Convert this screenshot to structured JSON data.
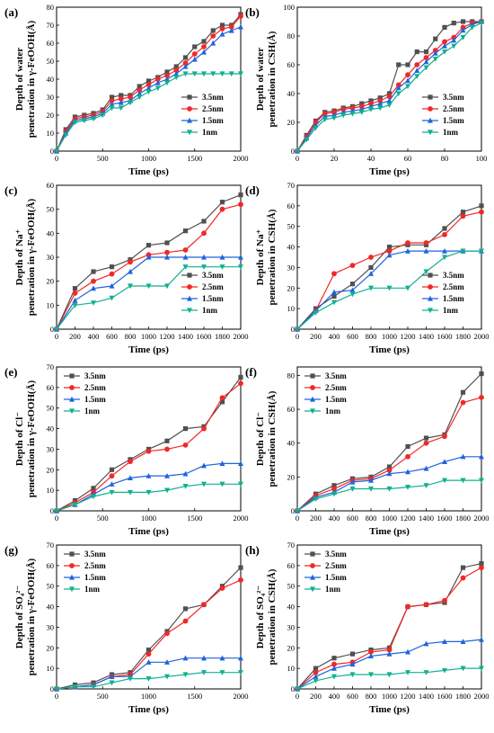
{
  "figure": {
    "x_title": "Time (ps)",
    "legend_names": [
      "3.5nm",
      "2.5nm",
      "1.5nm",
      "1nm"
    ],
    "series_colors": [
      "#505050",
      "#f02828",
      "#1e64dc",
      "#10b090"
    ],
    "marker_shapes": [
      "square",
      "circle",
      "triangle-up",
      "triangle-down"
    ]
  },
  "chart_data": [
    {
      "type": "line",
      "panel_label": "(a)",
      "ylabel_line1": "Depth of water",
      "ylabel_line2": "penetration in γ-FeOOH(Å)",
      "xlabel": "Time (ps)",
      "xlim": [
        0,
        2000
      ],
      "ylim": [
        0,
        80
      ],
      "xticks": [
        "0",
        "500",
        "1000",
        "1500",
        "2000"
      ],
      "yticks": [
        "0",
        "10",
        "20",
        "30",
        "40",
        "50",
        "60",
        "70",
        "80"
      ],
      "legend_position": "lower-right",
      "x": [
        0,
        100,
        200,
        300,
        400,
        500,
        600,
        700,
        800,
        900,
        1000,
        1100,
        1200,
        1300,
        1400,
        1500,
        1600,
        1700,
        1800,
        1900,
        2000
      ],
      "series": [
        {
          "name": "3.5nm",
          "values": [
            0,
            12,
            19,
            20,
            21,
            23,
            30,
            31,
            31,
            36,
            39,
            41,
            44,
            47,
            52,
            58,
            61,
            67,
            70,
            70,
            76
          ]
        },
        {
          "name": "2.5nm",
          "values": [
            0,
            11,
            18,
            19,
            20,
            22,
            28,
            29,
            30,
            34,
            37,
            40,
            42,
            45,
            49,
            54,
            58,
            64,
            68,
            69,
            75
          ]
        },
        {
          "name": "1.5nm",
          "values": [
            0,
            10,
            17,
            18,
            19,
            21,
            26,
            27,
            28,
            32,
            35,
            38,
            40,
            43,
            47,
            51,
            55,
            60,
            65,
            67,
            69
          ]
        },
        {
          "name": "1nm",
          "values": [
            0,
            9,
            16,
            17,
            18,
            20,
            24,
            24,
            27,
            30,
            33,
            35,
            38,
            41,
            43,
            43,
            43,
            43,
            43,
            43,
            43
          ]
        }
      ]
    },
    {
      "type": "line",
      "panel_label": "(b)",
      "ylabel_line1": "Depth of water",
      "ylabel_line2": "penetration in CSH(Å)",
      "xlabel": "Time (ps)",
      "xlim": [
        0,
        100
      ],
      "ylim": [
        0,
        100
      ],
      "xticks": [
        "0",
        "20",
        "40",
        "60",
        "80",
        "100"
      ],
      "yticks": [
        "0",
        "20",
        "40",
        "60",
        "80",
        "100"
      ],
      "legend_position": "lower-right",
      "x": [
        0,
        5,
        10,
        15,
        20,
        25,
        30,
        35,
        40,
        45,
        50,
        55,
        60,
        65,
        70,
        75,
        80,
        85,
        90,
        95,
        100
      ],
      "series": [
        {
          "name": "3.5nm",
          "values": [
            0,
            11,
            21,
            27,
            28,
            30,
            31,
            33,
            35,
            37,
            40,
            60,
            60,
            69,
            69,
            78,
            86,
            89,
            90,
            90,
            90
          ]
        },
        {
          "name": "2.5nm",
          "values": [
            0,
            10,
            20,
            26,
            27,
            29,
            30,
            31,
            33,
            35,
            38,
            46,
            53,
            60,
            65,
            70,
            76,
            79,
            86,
            89,
            90
          ]
        },
        {
          "name": "1.5nm",
          "values": [
            0,
            9,
            18,
            24,
            25,
            27,
            28,
            29,
            31,
            33,
            35,
            44,
            49,
            56,
            62,
            68,
            73,
            77,
            84,
            88,
            90
          ]
        },
        {
          "name": "1nm",
          "values": [
            0,
            8,
            16,
            22,
            23,
            25,
            26,
            27,
            29,
            30,
            32,
            40,
            45,
            52,
            58,
            64,
            69,
            73,
            79,
            86,
            89
          ]
        }
      ]
    },
    {
      "type": "line",
      "panel_label": "(c)",
      "ylabel_line1": "Depth of Na⁺",
      "ylabel_line2": "penetration in γ-FeOOH(Å)",
      "xlabel": "Time (ps)",
      "xlim": [
        0,
        2000
      ],
      "ylim": [
        0,
        60
      ],
      "xticks": [
        "0",
        "200",
        "400",
        "600",
        "800",
        "1000",
        "1200",
        "1400",
        "1600",
        "1800",
        "2000"
      ],
      "yticks": [
        "0",
        "10",
        "20",
        "30",
        "40",
        "50",
        "60"
      ],
      "legend_position": "lower-right",
      "x": [
        0,
        200,
        400,
        600,
        800,
        1000,
        1200,
        1400,
        1600,
        1800,
        2000
      ],
      "series": [
        {
          "name": "3.5nm",
          "values": [
            0,
            17,
            24,
            26,
            29,
            35,
            36,
            41,
            45,
            53,
            56
          ]
        },
        {
          "name": "2.5nm",
          "values": [
            0,
            15,
            20,
            23,
            28,
            31,
            32,
            33,
            40,
            50,
            52
          ]
        },
        {
          "name": "1.5nm",
          "values": [
            0,
            12,
            17,
            18,
            24,
            30,
            30,
            30,
            30,
            30,
            30
          ]
        },
        {
          "name": "1nm",
          "values": [
            0,
            10,
            11,
            13,
            18,
            18,
            18,
            26,
            26,
            26,
            26
          ]
        }
      ]
    },
    {
      "type": "line",
      "panel_label": "(d)",
      "ylabel_line1": "Depth of Na⁺",
      "ylabel_line2": "penetration in CSH(Å)",
      "xlabel": "Time (ps)",
      "xlim": [
        0,
        2000
      ],
      "ylim": [
        0,
        70
      ],
      "xticks": [
        "0",
        "200",
        "400",
        "600",
        "800",
        "1000",
        "1200",
        "1400",
        "1600",
        "1800",
        "2000"
      ],
      "yticks": [
        "0",
        "10",
        "20",
        "30",
        "40",
        "50",
        "60",
        "70"
      ],
      "legend_position": "lower-right",
      "x": [
        0,
        200,
        400,
        600,
        800,
        1000,
        1200,
        1400,
        1600,
        1800,
        2000
      ],
      "series": [
        {
          "name": "3.5nm",
          "values": [
            0,
            10,
            16,
            22,
            30,
            40,
            41,
            41,
            49,
            57,
            60
          ]
        },
        {
          "name": "2.5nm",
          "values": [
            0,
            9,
            27,
            31,
            35,
            38,
            42,
            42,
            46,
            55,
            57
          ]
        },
        {
          "name": "1.5nm",
          "values": [
            0,
            9,
            18,
            19,
            27,
            36,
            38,
            38,
            38,
            38,
            38
          ]
        },
        {
          "name": "1nm",
          "values": [
            0,
            8,
            13,
            17,
            20,
            20,
            20,
            28,
            35,
            38,
            38
          ]
        }
      ]
    },
    {
      "type": "line",
      "panel_label": "(e)",
      "ylabel_line1": "Depth of Cl⁻",
      "ylabel_line2": "penetration in γ-FeOOH(Å)",
      "xlabel": "Time (ps)",
      "xlim": [
        0,
        2000
      ],
      "ylim": [
        0,
        70
      ],
      "xticks": [
        "0",
        "500",
        "1000",
        "1500",
        "2000"
      ],
      "yticks": [
        "0",
        "10",
        "20",
        "30",
        "40",
        "50",
        "60",
        "70"
      ],
      "legend_position": "upper-left",
      "x": [
        0,
        200,
        400,
        600,
        800,
        1000,
        1200,
        1400,
        1600,
        1800,
        2000
      ],
      "series": [
        {
          "name": "3.5nm",
          "values": [
            0,
            5,
            11,
            20,
            25,
            30,
            34,
            40,
            41,
            53,
            65
          ]
        },
        {
          "name": "2.5nm",
          "values": [
            0,
            4,
            9,
            17,
            24,
            29,
            30,
            32,
            40,
            55,
            62
          ]
        },
        {
          "name": "1.5nm",
          "values": [
            0,
            3,
            8,
            13,
            16,
            17,
            17,
            18,
            22,
            23,
            23
          ]
        },
        {
          "name": "1nm",
          "values": [
            0,
            3,
            7,
            9,
            9,
            9,
            10,
            12,
            13,
            13,
            13
          ]
        }
      ]
    },
    {
      "type": "line",
      "panel_label": "(f)",
      "ylabel_line1": "Depth of Cl⁻",
      "ylabel_line2": "penetration in CSH(Å)",
      "xlabel": "Time (ps)",
      "xlim": [
        0,
        2000
      ],
      "ylim": [
        0,
        85
      ],
      "xticks": [
        "0",
        "200",
        "400",
        "600",
        "800",
        "1000",
        "1200",
        "1400",
        "1600",
        "1800",
        "2000"
      ],
      "yticks": [
        "0",
        "20",
        "40",
        "60",
        "80"
      ],
      "legend_position": "upper-left",
      "x": [
        0,
        200,
        400,
        600,
        800,
        1000,
        1200,
        1400,
        1600,
        1800,
        2000
      ],
      "series": [
        {
          "name": "3.5nm",
          "values": [
            0,
            10,
            15,
            19,
            20,
            26,
            38,
            43,
            45,
            70,
            81
          ]
        },
        {
          "name": "2.5nm",
          "values": [
            0,
            9,
            13,
            18,
            19,
            24,
            32,
            40,
            44,
            64,
            67
          ]
        },
        {
          "name": "1.5nm",
          "values": [
            0,
            8,
            11,
            17,
            18,
            22,
            23,
            25,
            29,
            32,
            32
          ]
        },
        {
          "name": "1nm",
          "values": [
            0,
            7,
            10,
            13,
            13,
            13,
            14,
            15,
            18,
            18,
            18
          ]
        }
      ]
    },
    {
      "type": "line",
      "panel_label": "(g)",
      "ylabel_line1": "Depth of SO₄²⁻",
      "ylabel_line2": "penetration in γ-FeOOH(Å)",
      "xlabel": "Time (ps)",
      "xlim": [
        0,
        2000
      ],
      "ylim": [
        0,
        70
      ],
      "xticks": [
        "0",
        "500",
        "1000",
        "1500",
        "2000"
      ],
      "yticks": [
        "0",
        "10",
        "20",
        "30",
        "40",
        "50",
        "60",
        "70"
      ],
      "legend_position": "upper-left",
      "x": [
        0,
        200,
        400,
        600,
        800,
        1000,
        1200,
        1400,
        1600,
        1800,
        2000
      ],
      "series": [
        {
          "name": "3.5nm",
          "values": [
            0,
            2,
            3,
            7,
            8,
            19,
            28,
            39,
            41,
            50,
            59
          ]
        },
        {
          "name": "2.5nm",
          "values": [
            0,
            1,
            2,
            6,
            7,
            17,
            27,
            33,
            41,
            49,
            53
          ]
        },
        {
          "name": "1.5nm",
          "values": [
            0,
            1,
            2,
            6,
            6,
            13,
            13,
            15,
            15,
            15,
            15
          ]
        },
        {
          "name": "1nm",
          "values": [
            0,
            1,
            1,
            3,
            5,
            5,
            6,
            7,
            8,
            8,
            8
          ]
        }
      ]
    },
    {
      "type": "line",
      "panel_label": "(h)",
      "ylabel_line1": "Depth of SO₄²⁻",
      "ylabel_line2": "penetration in CSH(Å)",
      "xlabel": "Time (ps)",
      "xlim": [
        0,
        2000
      ],
      "ylim": [
        0,
        70
      ],
      "xticks": [
        "0",
        "200",
        "400",
        "600",
        "800",
        "1000",
        "1200",
        "1400",
        "1600",
        "1800",
        "2000"
      ],
      "yticks": [
        "0",
        "10",
        "20",
        "30",
        "40",
        "50",
        "60",
        "70"
      ],
      "legend_position": "upper-left",
      "x": [
        0,
        200,
        400,
        600,
        800,
        1000,
        1200,
        1400,
        1600,
        1800,
        2000
      ],
      "series": [
        {
          "name": "3.5nm",
          "values": [
            0,
            10,
            15,
            17,
            19,
            20,
            40,
            41,
            42,
            59,
            61
          ]
        },
        {
          "name": "2.5nm",
          "values": [
            0,
            8,
            12,
            13,
            18,
            19,
            40,
            41,
            43,
            54,
            59
          ]
        },
        {
          "name": "1.5nm",
          "values": [
            0,
            6,
            10,
            12,
            16,
            17,
            18,
            22,
            23,
            23,
            24
          ]
        },
        {
          "name": "1nm",
          "values": [
            0,
            4,
            6,
            7,
            7,
            7,
            8,
            8,
            9,
            10,
            10
          ]
        }
      ]
    }
  ]
}
